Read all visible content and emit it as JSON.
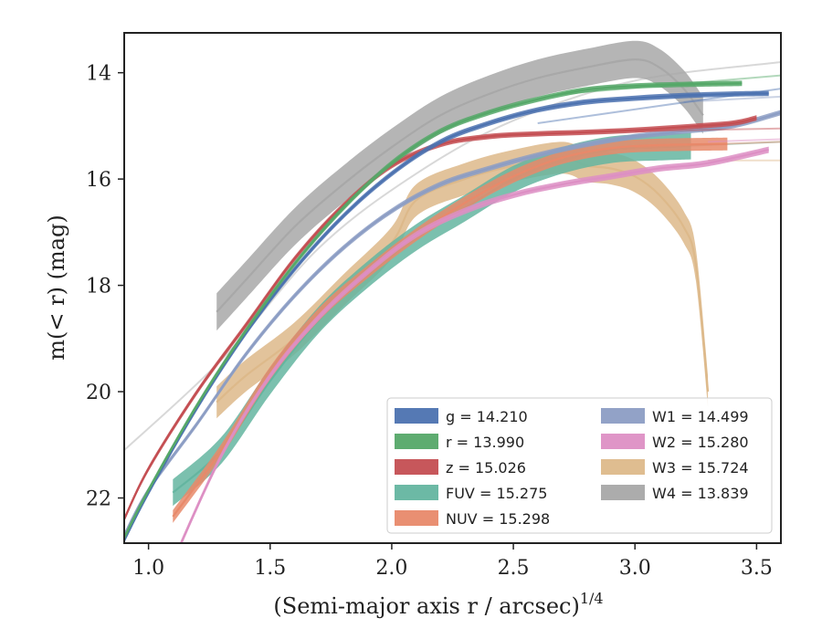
{
  "chart_data": {
    "type": "line",
    "xlabel": "(Semi-major axis r / arcsec)",
    "xlabel_sup": "1/4",
    "ylabel": "m(< r) (mag)",
    "xlim": [
      0.9,
      3.6
    ],
    "ylim": [
      22.85,
      13.25
    ],
    "y_inverted": true,
    "x_ticks": [
      1.0,
      1.5,
      2.0,
      2.5,
      3.0,
      3.5
    ],
    "x_tick_labels": [
      "1.0",
      "1.5",
      "2.0",
      "2.5",
      "3.0",
      "3.5"
    ],
    "y_ticks": [
      14,
      16,
      18,
      20,
      22
    ],
    "y_tick_labels": [
      "14",
      "16",
      "18",
      "20",
      "22"
    ],
    "grid": false,
    "legend_placement": "lower-right",
    "series": [
      {
        "key": "g",
        "name": "g",
        "value_text": "14.210",
        "color": "#4C72B0",
        "band": 0.05,
        "x": [
          0.9,
          1.0,
          1.2,
          1.4,
          1.6,
          1.8,
          2.0,
          2.2,
          2.4,
          2.6,
          2.8,
          3.0,
          3.2,
          3.4,
          3.55
        ],
        "y": [
          22.8,
          21.9,
          20.3,
          18.9,
          17.7,
          16.7,
          15.9,
          15.3,
          14.95,
          14.7,
          14.55,
          14.48,
          14.43,
          14.4,
          14.39
        ],
        "ext_x": [
          2.6,
          3.6
        ],
        "ext_y": [
          14.95,
          14.3
        ]
      },
      {
        "key": "r",
        "name": "r",
        "value_text": "13.990",
        "color": "#55A868",
        "band": 0.05,
        "x": [
          0.9,
          1.0,
          1.2,
          1.4,
          1.6,
          1.8,
          2.0,
          2.2,
          2.4,
          2.6,
          2.8,
          3.0,
          3.2,
          3.44
        ],
        "y": [
          22.75,
          21.85,
          20.25,
          18.85,
          17.6,
          16.55,
          15.7,
          15.1,
          14.75,
          14.5,
          14.32,
          14.25,
          14.22,
          14.2
        ],
        "ext_x": [
          2.7,
          3.6
        ],
        "ext_y": [
          14.4,
          14.05
        ]
      },
      {
        "key": "z",
        "name": "z",
        "value_text": "15.026",
        "color": "#C44E52",
        "band": 0.05,
        "x": [
          0.9,
          1.0,
          1.2,
          1.4,
          1.6,
          1.8,
          2.0,
          2.2,
          2.4,
          2.6,
          2.8,
          3.0,
          3.2,
          3.4,
          3.5
        ],
        "y": [
          22.4,
          21.45,
          20.0,
          18.75,
          17.5,
          16.5,
          15.75,
          15.35,
          15.2,
          15.15,
          15.12,
          15.08,
          15.02,
          14.95,
          14.85
        ],
        "ext_x": [
          3.0,
          3.6
        ],
        "ext_y": [
          15.1,
          15.05
        ]
      },
      {
        "key": "FUV",
        "name": "FUV",
        "value_text": "15.275",
        "color": "#64B5A0",
        "band": 0.25,
        "x": [
          1.1,
          1.3,
          1.5,
          1.7,
          1.9,
          2.1,
          2.3,
          2.5,
          2.7,
          2.9,
          3.1,
          3.23
        ],
        "y": [
          21.9,
          21.1,
          19.8,
          18.65,
          17.8,
          17.1,
          16.55,
          16.0,
          15.65,
          15.45,
          15.4,
          15.38
        ],
        "ext_x": [
          3.0,
          3.6
        ],
        "ext_y": [
          15.42,
          15.3
        ]
      },
      {
        "key": "NUV",
        "name": "NUV",
        "value_text": "15.298",
        "color": "#E8896A",
        "band": 0.12,
        "x": [
          1.1,
          1.3,
          1.5,
          1.7,
          1.9,
          2.1,
          2.3,
          2.5,
          2.7,
          2.9,
          3.1,
          3.38
        ],
        "y": [
          22.35,
          21.1,
          19.65,
          18.55,
          17.75,
          17.05,
          16.45,
          15.95,
          15.6,
          15.42,
          15.36,
          15.34
        ],
        "ext_x": [
          3.0,
          3.6
        ],
        "ext_y": [
          15.4,
          15.3
        ]
      },
      {
        "key": "W1",
        "name": "W1",
        "value_text": "14.499",
        "color": "#8C9DC4",
        "band": 0.05,
        "x": [
          0.9,
          1.0,
          1.2,
          1.4,
          1.6,
          1.8,
          2.0,
          2.2,
          2.4,
          2.6,
          2.8,
          3.0,
          3.2,
          3.4,
          3.6
        ],
        "y": [
          22.7,
          21.85,
          20.6,
          19.3,
          18.2,
          17.3,
          16.6,
          16.1,
          15.8,
          15.55,
          15.35,
          15.2,
          15.1,
          15.0,
          14.75
        ],
        "ext_x": [
          3.2,
          3.6
        ],
        "ext_y": [
          14.55,
          14.45
        ]
      },
      {
        "key": "W2",
        "name": "W2",
        "value_text": "15.280",
        "color": "#DD8FC4",
        "band": 0.06,
        "x": [
          1.1,
          1.3,
          1.5,
          1.7,
          1.9,
          2.1,
          2.3,
          2.5,
          2.7,
          2.9,
          3.1,
          3.3,
          3.55
        ],
        "y": [
          23.2,
          21.2,
          19.7,
          18.6,
          17.75,
          17.05,
          16.6,
          16.3,
          16.1,
          15.95,
          15.8,
          15.7,
          15.45
        ],
        "ext_x": [
          3.3,
          3.6
        ],
        "ext_y": [
          15.3,
          15.25
        ]
      },
      {
        "key": "W3",
        "name": "W3",
        "value_text": "15.724",
        "color": "#DDB98A",
        "band": 0.3,
        "x": [
          1.28,
          1.4,
          1.6,
          1.8,
          2.0,
          2.1,
          2.3,
          2.5,
          2.7,
          2.8,
          2.9,
          3.0,
          3.1,
          3.2,
          3.25,
          3.3
        ],
        "y": [
          20.2,
          19.7,
          19.0,
          18.1,
          17.2,
          16.4,
          16.0,
          15.75,
          15.6,
          15.75,
          15.8,
          15.95,
          16.3,
          16.9,
          17.6,
          20.0
        ],
        "ext_x": [
          3.3,
          3.6
        ],
        "ext_y": [
          15.65,
          15.65
        ]
      },
      {
        "key": "W4",
        "name": "W4",
        "value_text": "13.839",
        "color": "#A8A8A8",
        "band": 0.35,
        "x": [
          1.28,
          1.4,
          1.6,
          1.8,
          2.0,
          2.2,
          2.4,
          2.6,
          2.8,
          3.0,
          3.1,
          3.2,
          3.28
        ],
        "y": [
          18.5,
          17.9,
          16.9,
          16.1,
          15.4,
          14.8,
          14.4,
          14.1,
          13.9,
          13.75,
          13.9,
          14.3,
          14.8
        ],
        "ext_x": [
          0.9,
          1.3,
          1.7,
          2.1,
          2.5,
          3.0,
          3.6
        ],
        "ext_y": [
          21.1,
          19.4,
          17.3,
          15.9,
          14.9,
          14.15,
          13.8
        ]
      }
    ]
  },
  "legend": {
    "items": [
      {
        "key": "g",
        "label": "g = 14.210"
      },
      {
        "key": "r",
        "label": "r = 13.990"
      },
      {
        "key": "z",
        "label": "z = 15.026"
      },
      {
        "key": "FUV",
        "label": "FUV = 15.275"
      },
      {
        "key": "NUV",
        "label": "NUV = 15.298"
      },
      {
        "key": "W1",
        "label": "W1 = 14.499"
      },
      {
        "key": "W2",
        "label": "W2 = 15.280"
      },
      {
        "key": "W3",
        "label": "W3 = 15.724"
      },
      {
        "key": "W4",
        "label": "W4 = 13.839"
      }
    ]
  }
}
